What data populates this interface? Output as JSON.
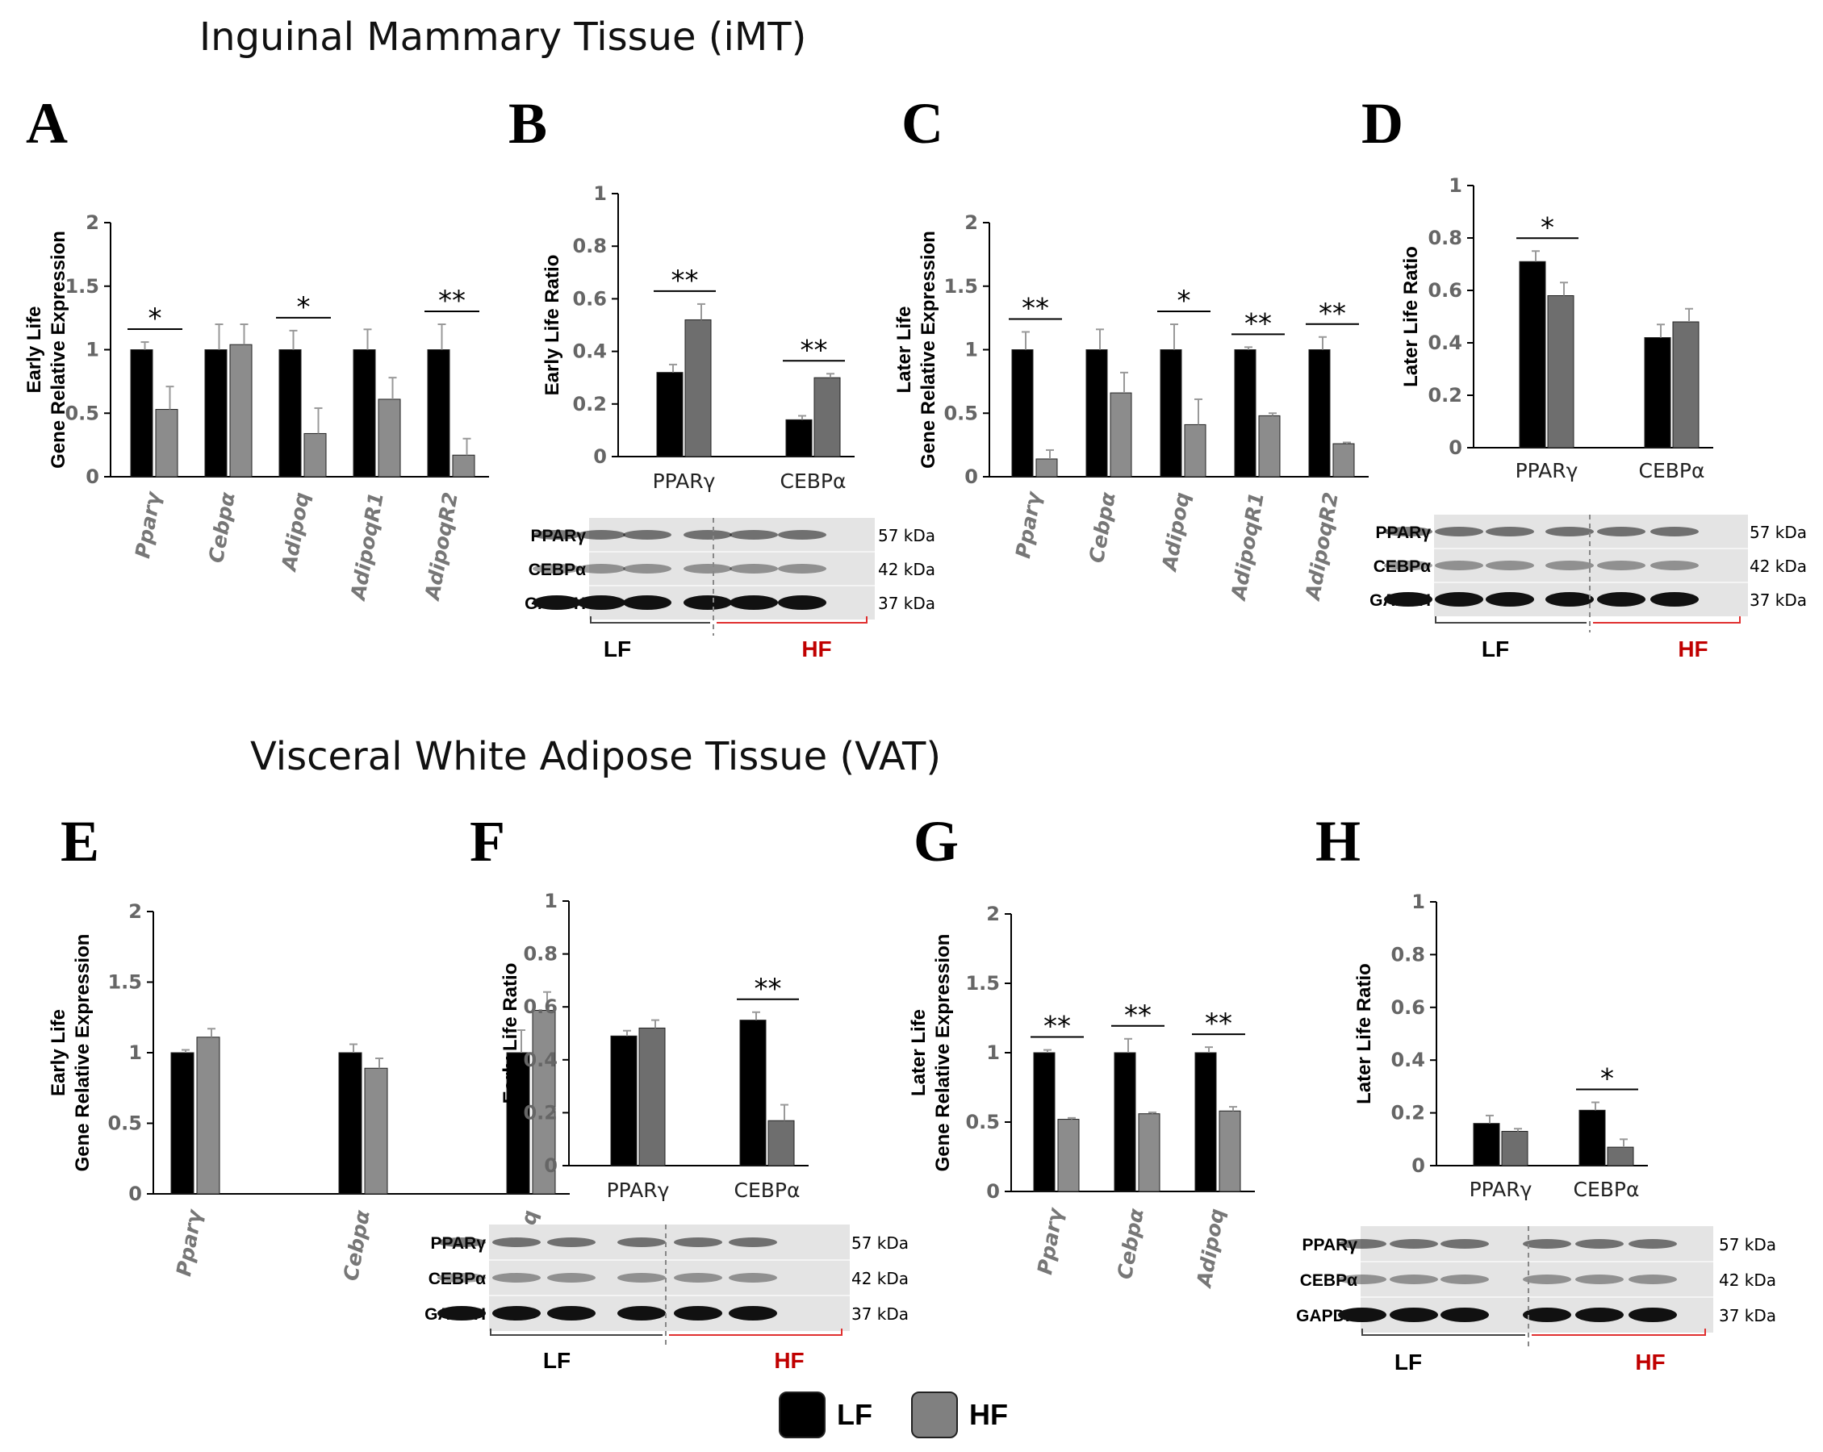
{
  "sections": {
    "top_title": "Inguinal Mammary Tissue (iMT)",
    "bottom_title": "Visceral White Adipose Tissue (VAT)"
  },
  "legend": {
    "items": [
      {
        "label": "LF",
        "color": "#000000"
      },
      {
        "label": "HF",
        "color": "#808080"
      }
    ]
  },
  "colors": {
    "lf": "#000000",
    "hf": "#8c8c8c",
    "hf_dark": "#6e6e6e",
    "hf_label": "#c00000"
  },
  "chart_data": [
    {
      "panel": "A",
      "type": "bar",
      "title": "",
      "ylabel": [
        "Early Life",
        "Gene Relative Expression"
      ],
      "ylim": [
        0,
        2
      ],
      "yticks": [
        "0",
        "0.5",
        "1",
        "1.5",
        "2"
      ],
      "italic_categories": true,
      "categories": [
        "Pparγ",
        "Cebpα",
        "Adipoq",
        "AdipoqR1",
        "AdipoqR2"
      ],
      "series": [
        {
          "name": "LF",
          "values": [
            1.0,
            1.0,
            1.0,
            1.0,
            1.0
          ],
          "errors": [
            0.06,
            0.2,
            0.15,
            0.16,
            0.2
          ]
        },
        {
          "name": "HF",
          "values": [
            0.53,
            1.04,
            0.34,
            0.61,
            0.17
          ],
          "errors": [
            0.18,
            0.16,
            0.2,
            0.17,
            0.13
          ]
        }
      ],
      "significance": [
        "*",
        "",
        "*",
        "",
        "**"
      ]
    },
    {
      "panel": "B",
      "type": "bar",
      "title": "",
      "ylabel": [
        "Early Life Ratio"
      ],
      "ylim": [
        0,
        1
      ],
      "yticks": [
        "0",
        "0.2",
        "0.4",
        "0.6",
        "0.8",
        "1"
      ],
      "italic_categories": false,
      "categories": [
        "PPARγ",
        "CEBPα"
      ],
      "series": [
        {
          "name": "LF",
          "values": [
            0.32,
            0.14
          ],
          "errors": [
            0.03,
            0.015
          ]
        },
        {
          "name": "HF",
          "values": [
            0.52,
            0.3
          ],
          "errors": [
            0.06,
            0.015
          ]
        }
      ],
      "significance": [
        "**",
        "**"
      ],
      "blot": {
        "bands": [
          "PPARγ",
          "CEBPα",
          "GAPDH"
        ],
        "sizes": [
          "57 kDa",
          "42 kDa",
          "37 kDa"
        ],
        "groups": [
          "LF",
          "HF"
        ]
      }
    },
    {
      "panel": "C",
      "type": "bar",
      "title": "",
      "ylabel": [
        "Later Life",
        "Gene Relative Expression"
      ],
      "ylim": [
        0,
        2
      ],
      "yticks": [
        "0",
        "0.5",
        "1",
        "1.5",
        "2"
      ],
      "italic_categories": true,
      "categories": [
        "Pparγ",
        "Cebpα",
        "Adipoq",
        "AdipoqR1",
        "AdipoqR2"
      ],
      "series": [
        {
          "name": "LF",
          "values": [
            1.0,
            1.0,
            1.0,
            1.0,
            1.0
          ],
          "errors": [
            0.14,
            0.16,
            0.2,
            0.02,
            0.1
          ]
        },
        {
          "name": "HF",
          "values": [
            0.14,
            0.66,
            0.41,
            0.48,
            0.26
          ],
          "errors": [
            0.07,
            0.16,
            0.2,
            0.02,
            0.01
          ]
        }
      ],
      "significance": [
        "**",
        "",
        "*",
        "**",
        "**"
      ]
    },
    {
      "panel": "D",
      "type": "bar",
      "title": "",
      "ylabel": [
        "Later Life Ratio"
      ],
      "ylim": [
        0,
        1
      ],
      "yticks": [
        "0",
        "0.2",
        "0.4",
        "0.6",
        "0.8",
        "1"
      ],
      "italic_categories": false,
      "categories": [
        "PPARγ",
        "CEBPα"
      ],
      "series": [
        {
          "name": "LF",
          "values": [
            0.71,
            0.42
          ],
          "errors": [
            0.04,
            0.05
          ]
        },
        {
          "name": "HF",
          "values": [
            0.58,
            0.48
          ],
          "errors": [
            0.05,
            0.05
          ]
        }
      ],
      "significance": [
        "*",
        ""
      ],
      "blot": {
        "bands": [
          "PPARγ",
          "CEBPα",
          "GAPDH"
        ],
        "sizes": [
          "57 kDa",
          "42 kDa",
          "37 kDa"
        ],
        "groups": [
          "LF",
          "HF"
        ]
      }
    },
    {
      "panel": "E",
      "type": "bar",
      "title": "",
      "ylabel": [
        "Early Life",
        "Gene Relative Expression"
      ],
      "ylim": [
        0,
        2
      ],
      "yticks": [
        "0",
        "0.5",
        "1",
        "1.5",
        "2"
      ],
      "italic_categories": true,
      "categories": [
        "Pparγ",
        "Cebpα",
        "Adipoq"
      ],
      "series": [
        {
          "name": "LF",
          "values": [
            1.0,
            1.0,
            1.0
          ],
          "errors": [
            0.02,
            0.06,
            0.16
          ]
        },
        {
          "name": "HF",
          "values": [
            1.11,
            0.89,
            1.3
          ],
          "errors": [
            0.06,
            0.07,
            0.13
          ]
        }
      ],
      "significance": [
        "",
        "",
        ""
      ]
    },
    {
      "panel": "F",
      "type": "bar",
      "title": "",
      "ylabel": [
        "Early Life Ratio"
      ],
      "ylim": [
        0,
        1
      ],
      "yticks": [
        "0",
        "0.2",
        "0.4",
        "0.6",
        "0.8",
        "1"
      ],
      "italic_categories": false,
      "categories": [
        "PPARγ",
        "CEBPα"
      ],
      "series": [
        {
          "name": "LF",
          "values": [
            0.49,
            0.55
          ],
          "errors": [
            0.02,
            0.03
          ]
        },
        {
          "name": "HF",
          "values": [
            0.52,
            0.17
          ],
          "errors": [
            0.03,
            0.06
          ]
        }
      ],
      "significance": [
        "",
        "**"
      ],
      "blot": {
        "bands": [
          "PPARγ",
          "CEBPα",
          "GAPDH"
        ],
        "sizes": [
          "57 kDa",
          "42 kDa",
          "37 kDa"
        ],
        "groups": [
          "LF",
          "HF"
        ]
      }
    },
    {
      "panel": "G",
      "type": "bar",
      "title": "",
      "ylabel": [
        "Later Life",
        "Gene Relative Expression"
      ],
      "ylim": [
        0,
        2
      ],
      "yticks": [
        "0",
        "0.5",
        "1",
        "1.5",
        "2"
      ],
      "italic_categories": true,
      "categories": [
        "Pparγ",
        "Cebpα",
        "Adipoq"
      ],
      "series": [
        {
          "name": "LF",
          "values": [
            1.0,
            1.0,
            1.0
          ],
          "errors": [
            0.02,
            0.1,
            0.04
          ]
        },
        {
          "name": "HF",
          "values": [
            0.52,
            0.56,
            0.58
          ],
          "errors": [
            0.01,
            0.01,
            0.03
          ]
        }
      ],
      "significance": [
        "**",
        "**",
        "**"
      ]
    },
    {
      "panel": "H",
      "type": "bar",
      "title": "",
      "ylabel": [
        "Later Life Ratio"
      ],
      "ylim": [
        0,
        1
      ],
      "yticks": [
        "0",
        "0.2",
        "0.4",
        "0.6",
        "0.8",
        "1"
      ],
      "italic_categories": false,
      "categories": [
        "PPARγ",
        "CEBPα"
      ],
      "series": [
        {
          "name": "LF",
          "values": [
            0.16,
            0.21
          ],
          "errors": [
            0.03,
            0.03
          ]
        },
        {
          "name": "HF",
          "values": [
            0.13,
            0.07
          ],
          "errors": [
            0.01,
            0.03
          ]
        }
      ],
      "significance": [
        "",
        "*"
      ],
      "blot": {
        "bands": [
          "PPARγ",
          "CEBPα",
          "GAPDH"
        ],
        "sizes": [
          "57 kDa",
          "42 kDa",
          "37 kDa"
        ],
        "groups": [
          "LF",
          "HF"
        ]
      }
    }
  ]
}
